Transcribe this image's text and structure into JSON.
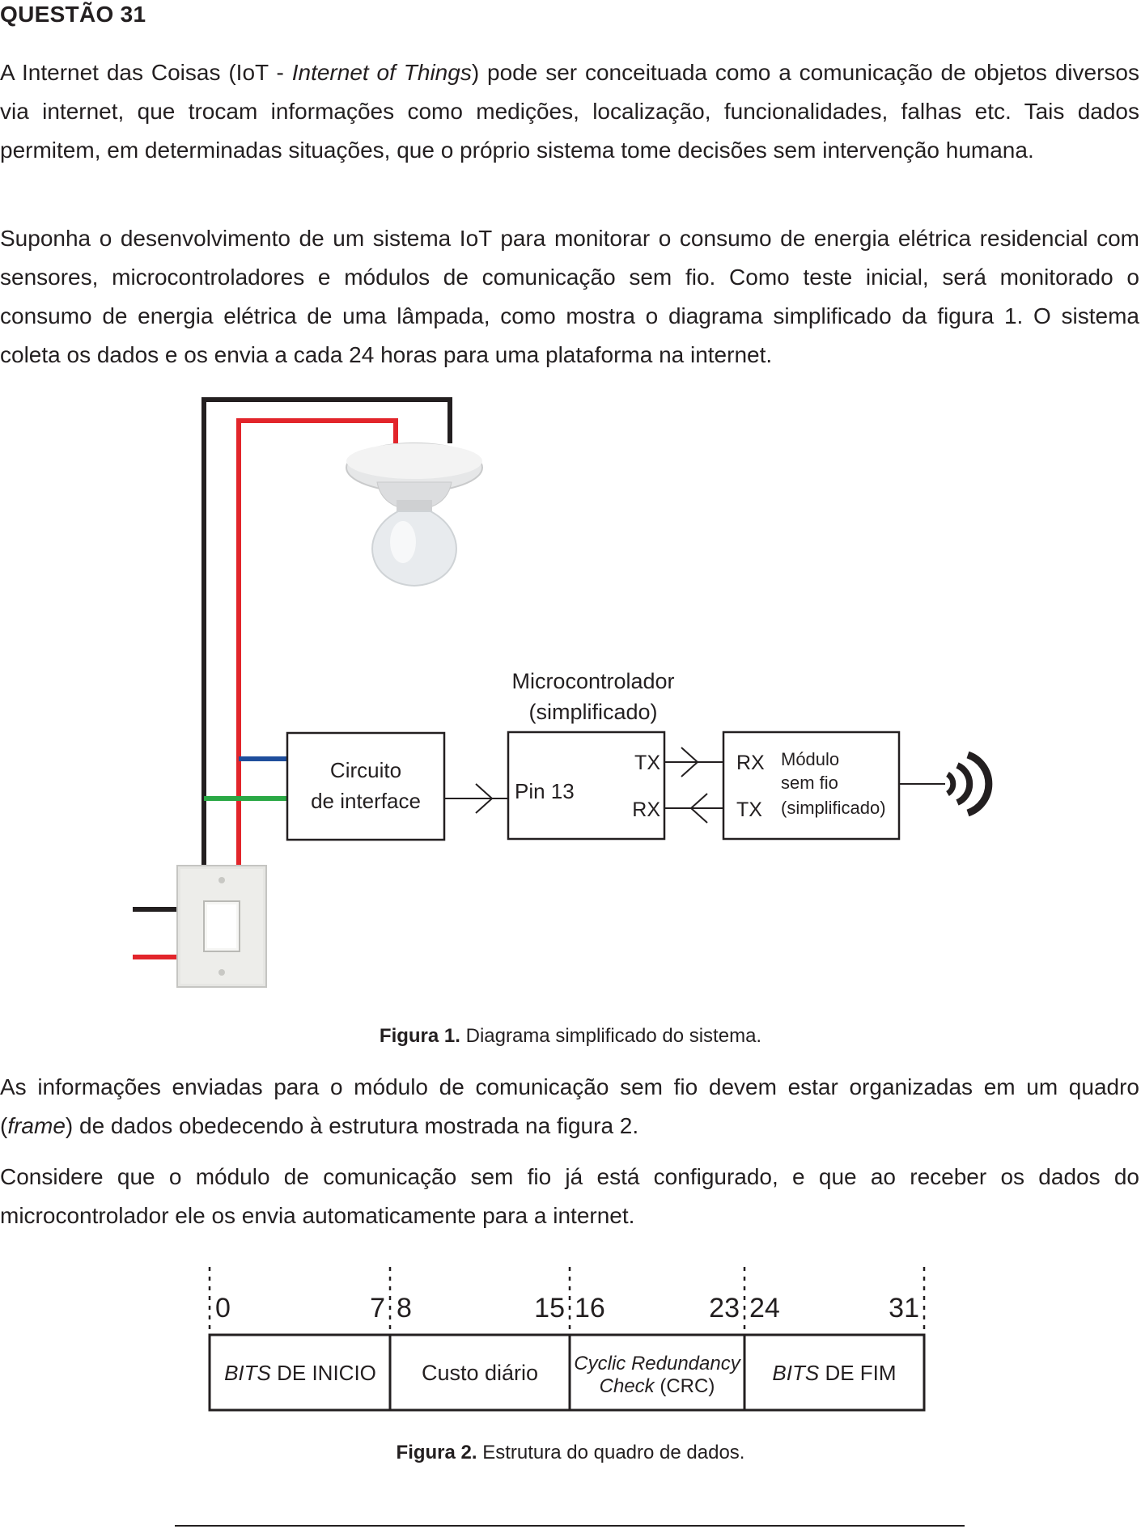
{
  "question": {
    "title": "QUESTÃO 31"
  },
  "paragraphs": {
    "p1_pre": "A Internet das Coisas (IoT - ",
    "p1_em": "Internet of Things",
    "p1_post": ") pode ser conceituada como a comunicação de objetos diversos via internet, que trocam informações como medições, localização, funcionalidades, falhas etc. Tais dados permitem, em determinadas situações, que o próprio sistema tome decisões sem intervenção humana.",
    "p2": "Suponha o desenvolvimento de um sistema IoT para monitorar o consumo de energia elétrica residencial com sensores, microcontroladores e módulos de comunicação sem fio. Como teste inicial, será monitorado o consumo de energia elétrica de uma lâmpada, como mostra o diagrama simplificado da figura 1. O sistema coleta os dados e os envia a cada 24 horas para uma plataforma na internet.",
    "p3_pre": "As informações enviadas para o módulo de comunicação sem fio devem estar organizadas em um quadro (",
    "p3_em": "frame",
    "p3_post": ") de dados obedecendo à estrutura mostrada na figura 2.",
    "p4": "Considere que o módulo de comunicação sem fio já está configurado, e que ao receber os dados do microcontrolador ele os envia automaticamente para a internet."
  },
  "figure1": {
    "microcontroller_title_1": "Microcontrolador",
    "microcontroller_title_2": "(simplificado)",
    "interface_line1": "Circuito",
    "interface_line2": "de interface",
    "pin_label": "Pin 13",
    "mcu_tx": "TX",
    "mcu_rx": "RX",
    "module_rx": "RX",
    "module_tx": "TX",
    "module_line1": "Módulo",
    "module_line2": "sem fio",
    "module_line3": "(simplificado)",
    "caption_bold": "Figura 1.",
    "caption_text": " Diagrama simplificado do sistema."
  },
  "figure2": {
    "bit_labels": [
      "0",
      "7",
      "8",
      "15",
      "16",
      "23",
      "24",
      "31"
    ],
    "field1_em": "BITS",
    "field1_rest": " DE INICIO",
    "field2": "Custo diário",
    "field3_line1": "Cyclic Redundancy",
    "field3_line2_em": "Check",
    "field3_line2_rest": " (CRC)",
    "field4_em": "BITS",
    "field4_rest": " DE FIM",
    "caption_bold": "Figura 2.",
    "caption_text": " Estrutura do quadro de dados."
  },
  "colors": {
    "wire_black": "#231f20",
    "wire_red": "#e2252b",
    "wire_blue": "#1f4e9c",
    "wire_green": "#2aa845"
  }
}
